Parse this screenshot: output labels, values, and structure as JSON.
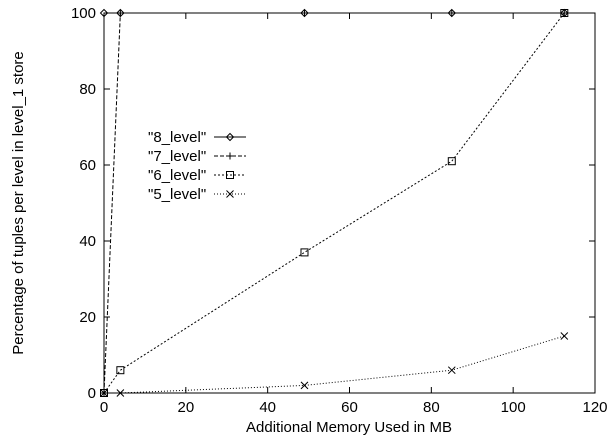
{
  "chart_data": {
    "type": "line",
    "title": "",
    "xlabel": "Additional Memory Used in MB",
    "ylabel": "Percentage of tuples per level in level_1 store",
    "xlim": [
      0,
      120
    ],
    "ylim": [
      0,
      100
    ],
    "xticks": [
      0,
      20,
      40,
      60,
      80,
      100,
      120
    ],
    "yticks": [
      0,
      20,
      40,
      60,
      80,
      100
    ],
    "grid": false,
    "legend_position": "left-middle",
    "series": [
      {
        "name": "\"8_level\"",
        "marker": "diamond",
        "dash": "solid",
        "x": [
          0,
          4,
          49,
          85,
          112.5
        ],
        "y": [
          100,
          100,
          100,
          100,
          100
        ]
      },
      {
        "name": "\"7_level\"",
        "marker": "plus",
        "dash": "dashed",
        "x": [
          0,
          4,
          49,
          85,
          112.5
        ],
        "y": [
          0,
          100,
          100,
          100,
          100
        ]
      },
      {
        "name": "\"6_level\"",
        "marker": "square",
        "dash": "dotted",
        "x": [
          0,
          4,
          49,
          85,
          112.5
        ],
        "y": [
          0,
          6,
          37,
          61,
          100
        ]
      },
      {
        "name": "\"5_level\"",
        "marker": "cross",
        "dash": "fine-dotted",
        "x": [
          0,
          4,
          49,
          85,
          112.5
        ],
        "y": [
          0,
          0,
          2,
          6,
          15
        ]
      }
    ]
  }
}
